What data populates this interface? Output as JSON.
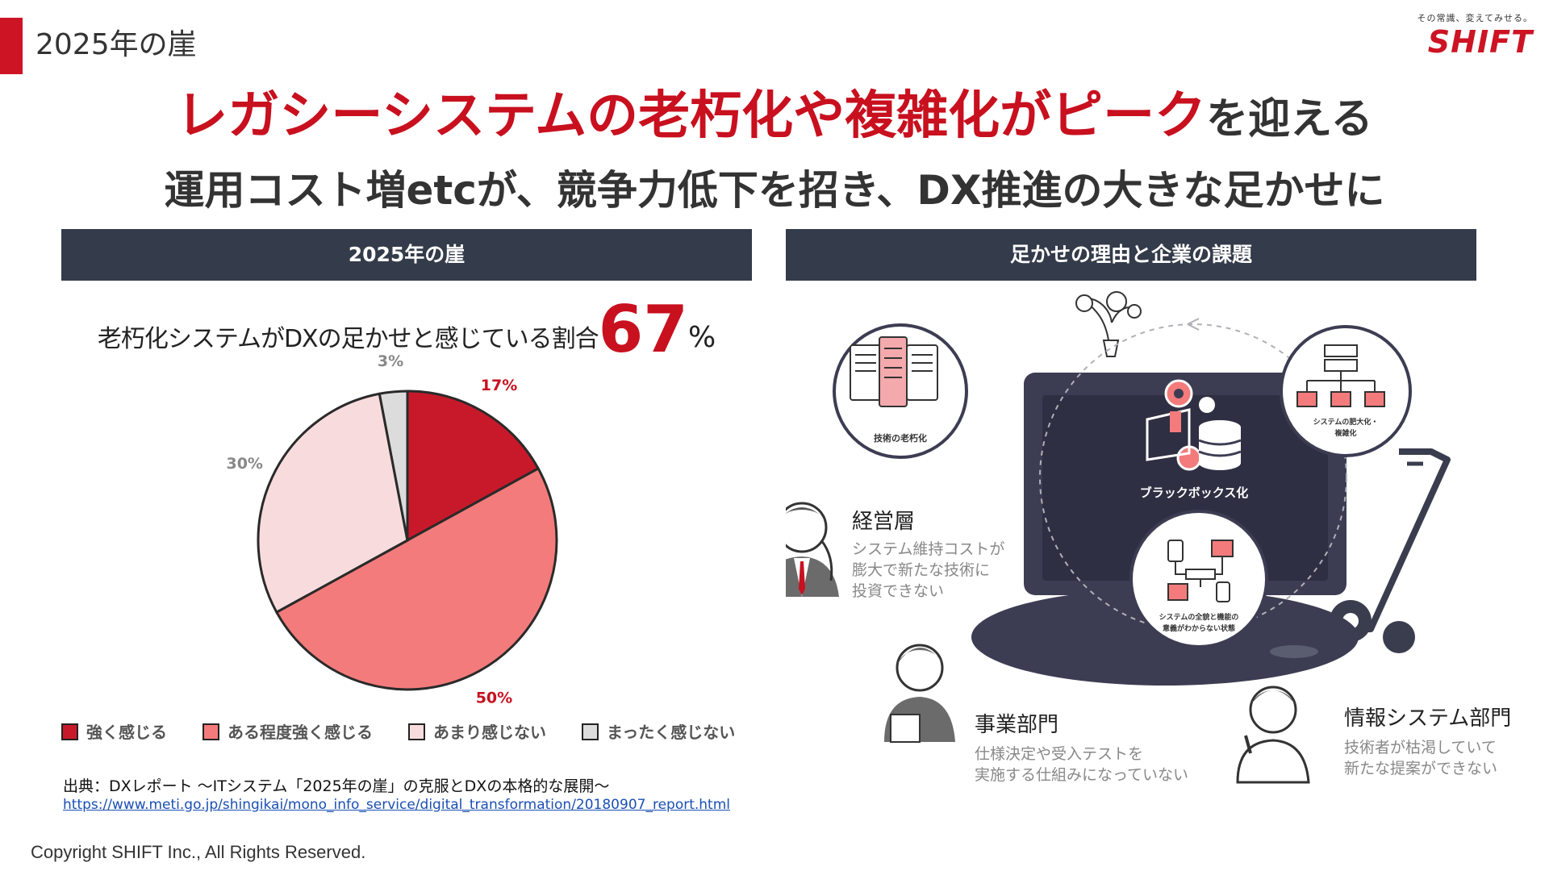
{
  "header": {
    "slide_label": "2025年の崖",
    "logo_tagline": "その常識、変えてみせる。",
    "logo_wordmark": "SHIFT"
  },
  "headline": {
    "red_part": "レガシーシステムの老朽化や複雑化がピーク",
    "dark_part": "を迎える",
    "subhead": "運用コスト増etcが、競争力低下を招き、DX推進の大きな足かせに"
  },
  "left_panel": {
    "header": "2025年の崖",
    "caption_text": "老朽化システムがDXの足かせと感じている割合",
    "caption_value": "67",
    "caption_unit": "%"
  },
  "chart_data": {
    "type": "pie",
    "title": "",
    "categories": [
      "強く感じる",
      "ある程度強く感じる",
      "あまり感じない",
      "まったく感じない"
    ],
    "values": [
      17,
      50,
      30,
      3
    ],
    "labels": [
      "17%",
      "50%",
      "30%",
      "3%"
    ],
    "colors": [
      "#c8192b",
      "#f47b7b",
      "#f8dcdd",
      "#dcdcdc"
    ],
    "legend_position": "bottom"
  },
  "source": {
    "text": "出典：DXレポート ～ITシステム「2025年の崖」の克服とDXの本格的な展開～",
    "url": "https://www.meti.go.jp/shingikai/mono_info_service/digital_transformation/20180907_report.html"
  },
  "right_panel": {
    "header": "足かせの理由と企業の課題",
    "circles": {
      "aging": "技術の老朽化",
      "blackbox": "ブラックボックス化",
      "bloat_line1": "システムの肥大化・",
      "bloat_line2": "複雑化",
      "unknown_line1": "システムの全貌と機能の",
      "unknown_line2": "意義がわからない状態"
    },
    "personas": [
      {
        "title": "経営層",
        "lines": [
          "システム維持コストが",
          "膨大で新たな技術に",
          "投資できない"
        ]
      },
      {
        "title": "事業部門",
        "lines": [
          "仕様決定や受入テストを",
          "実施する仕組みになっていない"
        ]
      },
      {
        "title": "情報システム部門",
        "lines": [
          "技術者が枯渇していて",
          "新たな提案ができない"
        ]
      }
    ]
  },
  "footer": {
    "copyright": "Copyright SHIFT Inc., All Rights Reserved."
  }
}
